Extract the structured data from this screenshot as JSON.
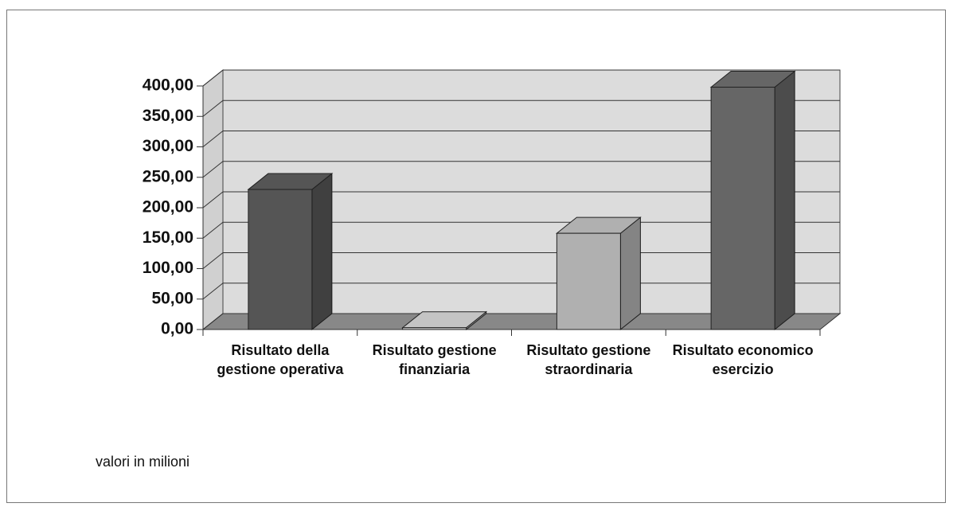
{
  "chart_data": {
    "type": "bar3d",
    "categories": [
      "Risultato della gestione operativa",
      "Risultato gestione finanziaria",
      "Risultato gestione straordinaria",
      "Risultato economico esercizio"
    ],
    "values": [
      230,
      3,
      158,
      398
    ],
    "colors": [
      "#555555",
      "#c4c4c4",
      "#b0b0b0",
      "#666666"
    ],
    "ylim": [
      0,
      400
    ],
    "yticks": [
      {
        "value": 0,
        "label": "0,00"
      },
      {
        "value": 50,
        "label": "50,00"
      },
      {
        "value": 100,
        "label": "100,00"
      },
      {
        "value": 150,
        "label": "150,00"
      },
      {
        "value": 200,
        "label": "200,00"
      },
      {
        "value": 250,
        "label": "250,00"
      },
      {
        "value": 300,
        "label": "300,00"
      },
      {
        "value": 350,
        "label": "350,00"
      },
      {
        "value": 400,
        "label": "400,00"
      }
    ],
    "grid": true,
    "note": "valori in milioni"
  }
}
